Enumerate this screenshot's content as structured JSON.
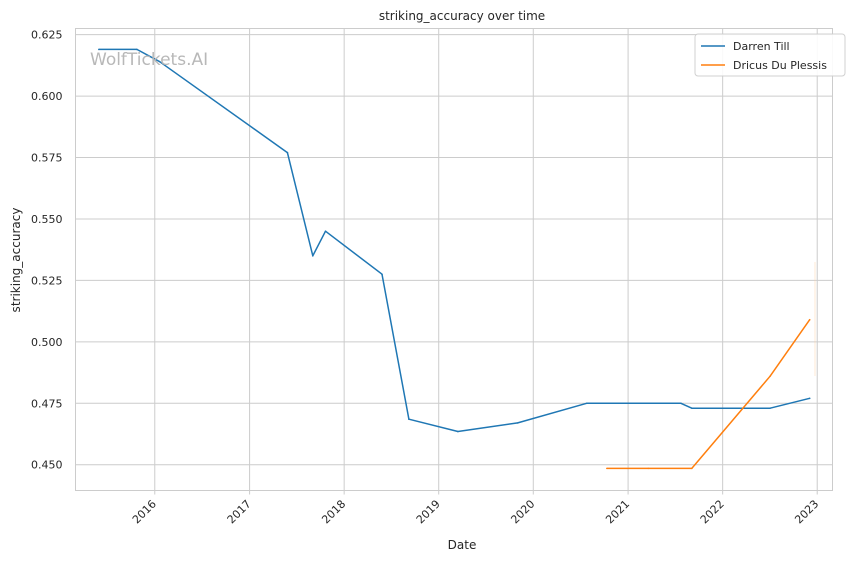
{
  "chart_data": {
    "type": "line",
    "title": "striking_accuracy over time",
    "xlabel": "Date",
    "ylabel": "striking_accuracy",
    "watermark": "WolfTickets.AI",
    "xlim": [
      "2015-03-01",
      "2023-03-01"
    ],
    "ylim": [
      0.4395,
      0.6275
    ],
    "x_ticks": [
      {
        "date": "2016-01-01",
        "label": "2016"
      },
      {
        "date": "2017-01-01",
        "label": "2017"
      },
      {
        "date": "2018-01-01",
        "label": "2018"
      },
      {
        "date": "2019-01-01",
        "label": "2019"
      },
      {
        "date": "2020-01-01",
        "label": "2020"
      },
      {
        "date": "2021-01-01",
        "label": "2021"
      },
      {
        "date": "2022-01-01",
        "label": "2022"
      },
      {
        "date": "2023-01-01",
        "label": "2023"
      }
    ],
    "y_ticks": [
      {
        "value": 0.45,
        "label": "0.450"
      },
      {
        "value": 0.475,
        "label": "0.475"
      },
      {
        "value": 0.5,
        "label": "0.500"
      },
      {
        "value": 0.525,
        "label": "0.525"
      },
      {
        "value": 0.55,
        "label": "0.550"
      },
      {
        "value": 0.575,
        "label": "0.575"
      },
      {
        "value": 0.6,
        "label": "0.600"
      },
      {
        "value": 0.625,
        "label": "0.625"
      }
    ],
    "grid": true,
    "legend_position": "top-right",
    "series": [
      {
        "name": "Darren Till",
        "color": "#1f77b4",
        "points": [
          {
            "x": "2015-05-30",
            "y": 0.619
          },
          {
            "x": "2015-10-24",
            "y": 0.619
          },
          {
            "x": "2016-01-20",
            "y": 0.614
          },
          {
            "x": "2017-05-27",
            "y": 0.577
          },
          {
            "x": "2017-09-02",
            "y": 0.535
          },
          {
            "x": "2017-10-21",
            "y": 0.545
          },
          {
            "x": "2018-05-27",
            "y": 0.5275
          },
          {
            "x": "2018-09-08",
            "y": 0.4685
          },
          {
            "x": "2019-03-16",
            "y": 0.4635
          },
          {
            "x": "2019-11-02",
            "y": 0.467
          },
          {
            "x": "2020-07-25",
            "y": 0.475
          },
          {
            "x": "2021-07-24",
            "y": 0.475
          },
          {
            "x": "2021-09-04",
            "y": 0.473
          },
          {
            "x": "2022-07-03",
            "y": 0.473
          },
          {
            "x": "2022-12-03",
            "y": 0.477
          }
        ]
      },
      {
        "name": "Dricus Du Plessis",
        "color": "#ff7f0e",
        "points": [
          {
            "x": "2020-10-11",
            "y": 0.4485
          },
          {
            "x": "2021-03-20",
            "y": 0.4485
          },
          {
            "x": "2021-09-04",
            "y": 0.4485
          },
          {
            "x": "2022-07-03",
            "y": 0.486
          },
          {
            "x": "2022-12-03",
            "y": 0.509
          }
        ]
      }
    ]
  }
}
